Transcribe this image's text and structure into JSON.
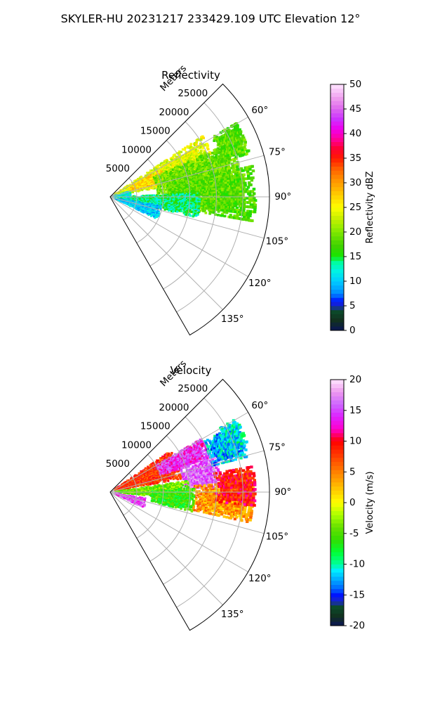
{
  "figure": {
    "suptitle": "SKYLER-HU  20231217  233429.109 UTC Elevation 12°"
  },
  "colors": {
    "grid": "#b0b0b0",
    "axis": "#000000"
  },
  "chart_data": [
    {
      "type": "heatmap",
      "title": "Reflectivity",
      "projection": "polar-sector",
      "range_label": "Meters",
      "range_ticks": [
        "5000",
        "10000",
        "15000",
        "20000",
        "25000"
      ],
      "range_values": [
        5000,
        10000,
        15000,
        20000,
        25000
      ],
      "range_max": 30000,
      "angle_ticks": [
        "60°",
        "75°",
        "90°",
        "105°",
        "120°",
        "135°"
      ],
      "angle_values": [
        60,
        75,
        90,
        105,
        120,
        135
      ],
      "angle_range": [
        45,
        150
      ],
      "colorbar": {
        "label": "Reflectivity dBZ",
        "min": 0,
        "max": 50,
        "ticks": [
          "0",
          "5",
          "10",
          "15",
          "20",
          "25",
          "30",
          "35",
          "40",
          "45",
          "50"
        ]
      },
      "echo_regions": [
        {
          "az": [
            57,
            80
          ],
          "r": [
            1000,
            21000
          ],
          "value": 24
        },
        {
          "az": [
            62,
            76
          ],
          "r": [
            4000,
            11000
          ],
          "value": 27
        },
        {
          "az": [
            66,
            92
          ],
          "r": [
            9000,
            25000
          ],
          "value": 19
        },
        {
          "az": [
            78,
            100
          ],
          "r": [
            11000,
            27500
          ],
          "value": 18
        },
        {
          "az": [
            88,
            104
          ],
          "r": [
            1500,
            17000
          ],
          "value": 14
        },
        {
          "az": [
            60,
            73
          ],
          "r": [
            22000,
            27500
          ],
          "value": 18
        },
        {
          "az": [
            100,
            116
          ],
          "r": [
            1000,
            10000
          ],
          "value": 10
        },
        {
          "az": [
            74,
            94
          ],
          "r": [
            500,
            4000
          ],
          "value": 12
        }
      ]
    },
    {
      "type": "heatmap",
      "title": "Velocity",
      "projection": "polar-sector",
      "range_label": "Meters",
      "range_ticks": [
        "5000",
        "10000",
        "15000",
        "20000",
        "25000"
      ],
      "range_values": [
        5000,
        10000,
        15000,
        20000,
        25000
      ],
      "range_max": 30000,
      "angle_ticks": [
        "60°",
        "75°",
        "90°",
        "105°",
        "120°",
        "135°"
      ],
      "angle_values": [
        60,
        75,
        90,
        105,
        120,
        135
      ],
      "angle_range": [
        45,
        150
      ],
      "colorbar": {
        "label": "Velocity (m/s)",
        "min": -20,
        "max": 20,
        "ticks": [
          "-20",
          "-15",
          "-10",
          "-5",
          "0",
          "5",
          "10",
          "15",
          "20"
        ]
      },
      "echo_regions": [
        {
          "az": [
            56,
            80
          ],
          "r": [
            1000,
            14000
          ],
          "value": 8
        },
        {
          "az": [
            60,
            72
          ],
          "r": [
            10000,
            20000
          ],
          "value": 14
        },
        {
          "az": [
            72,
            88
          ],
          "r": [
            14000,
            21000
          ],
          "value": 16
        },
        {
          "az": [
            86,
            103
          ],
          "r": [
            16000,
            27000
          ],
          "value": 4
        },
        {
          "az": [
            80,
            96
          ],
          "r": [
            20000,
            27500
          ],
          "value": 9
        },
        {
          "az": [
            82,
            96
          ],
          "r": [
            1000,
            15000
          ],
          "value": -4
        },
        {
          "az": [
            62,
            76
          ],
          "r": [
            20000,
            27000
          ],
          "value": -12
        },
        {
          "az": [
            60,
            70
          ],
          "r": [
            24000,
            27500
          ],
          "value": -11
        },
        {
          "az": [
            100,
            116
          ],
          "r": [
            1000,
            7000
          ],
          "value": 15
        },
        {
          "az": [
            88,
            104
          ],
          "r": [
            8000,
            16000
          ],
          "value": -6
        }
      ]
    }
  ]
}
